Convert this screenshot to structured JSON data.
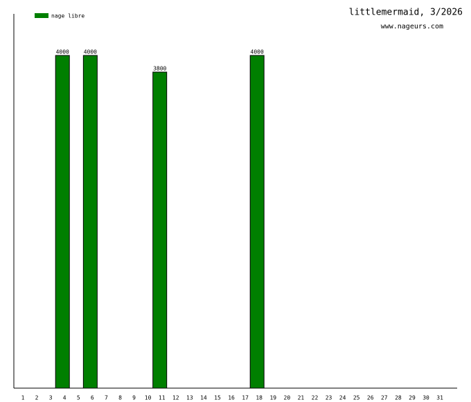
{
  "chart_data": {
    "type": "bar",
    "title": "littlemermaid, 3/2026",
    "subtitle": "www.nageurs.com",
    "categories": [
      "1",
      "2",
      "3",
      "4",
      "5",
      "6",
      "7",
      "8",
      "9",
      "10",
      "11",
      "12",
      "13",
      "14",
      "15",
      "16",
      "17",
      "18",
      "19",
      "20",
      "21",
      "22",
      "23",
      "24",
      "25",
      "26",
      "27",
      "28",
      "29",
      "30",
      "31"
    ],
    "series": [
      {
        "name": "nage libre",
        "color": "#007f00",
        "values": [
          null,
          null,
          null,
          4000,
          null,
          4000,
          null,
          null,
          null,
          null,
          3800,
          null,
          null,
          null,
          null,
          null,
          null,
          4000,
          null,
          null,
          null,
          null,
          null,
          null,
          null,
          null,
          null,
          null,
          null,
          null,
          null
        ]
      }
    ],
    "ylim": [
      0,
      4500
    ]
  }
}
